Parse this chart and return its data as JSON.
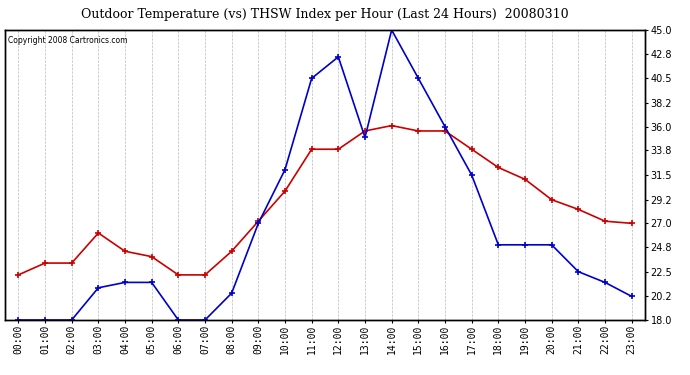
{
  "title": "Outdoor Temperature (vs) THSW Index per Hour (Last 24 Hours)  20080310",
  "copyright": "Copyright 2008 Cartronics.com",
  "hours": [
    "00:00",
    "01:00",
    "02:00",
    "03:00",
    "04:00",
    "05:00",
    "06:00",
    "07:00",
    "08:00",
    "09:00",
    "10:00",
    "11:00",
    "12:00",
    "13:00",
    "14:00",
    "15:00",
    "16:00",
    "17:00",
    "18:00",
    "19:00",
    "20:00",
    "21:00",
    "22:00",
    "23:00"
  ],
  "temp_red": [
    22.2,
    23.3,
    23.3,
    26.1,
    24.4,
    23.9,
    22.2,
    22.2,
    24.4,
    27.2,
    30.0,
    33.9,
    33.9,
    35.6,
    36.1,
    35.6,
    35.6,
    33.9,
    32.2,
    31.1,
    29.2,
    28.3,
    27.2,
    27.0
  ],
  "thsw_blue": [
    18.0,
    18.0,
    18.0,
    21.0,
    21.5,
    21.5,
    18.0,
    18.0,
    20.5,
    27.0,
    32.0,
    40.5,
    42.5,
    35.0,
    45.0,
    40.5,
    36.0,
    31.5,
    25.0,
    25.0,
    25.0,
    22.5,
    21.5,
    20.2
  ],
  "ylim": [
    18.0,
    45.0
  ],
  "yticks_right": [
    18.0,
    20.2,
    22.5,
    24.8,
    27.0,
    29.2,
    31.5,
    33.8,
    36.0,
    38.2,
    40.5,
    42.8,
    45.0
  ],
  "bg_color": "#ffffff",
  "grid_color": "#bbbbbb",
  "title_color": "#000000",
  "red_color": "#cc0000",
  "blue_color": "#0000cc"
}
